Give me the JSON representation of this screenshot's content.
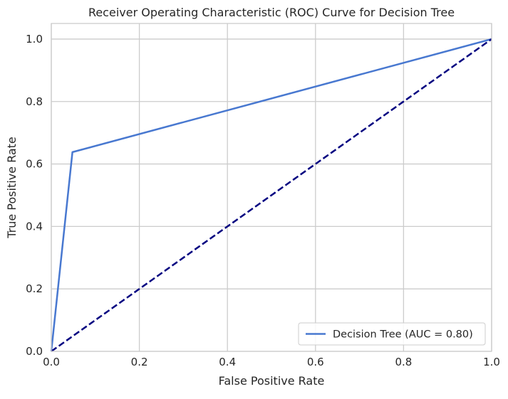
{
  "chart_data": {
    "type": "line",
    "title": "Receiver Operating Characteristic (ROC) Curve for Decision Tree",
    "xlabel": "False Positive Rate",
    "ylabel": "True Positive Rate",
    "xlim": [
      0.0,
      1.0
    ],
    "ylim": [
      0.0,
      1.05
    ],
    "xticks": [
      0.0,
      0.2,
      0.4,
      0.6,
      0.8,
      1.0
    ],
    "xtick_labels": [
      "0.0",
      "0.2",
      "0.4",
      "0.6",
      "0.8",
      "1.0"
    ],
    "yticks": [
      0.0,
      0.2,
      0.4,
      0.6,
      0.8,
      1.0
    ],
    "ytick_labels": [
      "0.0",
      "0.2",
      "0.4",
      "0.6",
      "0.8",
      "1.0"
    ],
    "grid": true,
    "legend_position": "lower-right",
    "series": [
      {
        "name": "Decision Tree (AUC = 0.80)",
        "x": [
          0.0,
          0.048,
          1.0
        ],
        "y": [
          0.0,
          0.638,
          1.0
        ],
        "color": "#4878d0",
        "style": "solid"
      },
      {
        "x": [
          0.0,
          1.0
        ],
        "y": [
          0.0,
          1.0
        ],
        "color": "#000080",
        "style": "dashed"
      }
    ],
    "colors": {
      "grid": "#cccccc",
      "axes_edge": "#cccccc",
      "text": "#262626"
    }
  }
}
